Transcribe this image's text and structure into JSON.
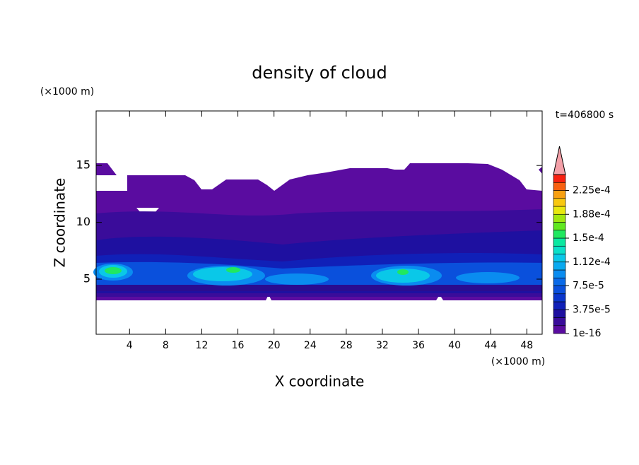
{
  "chart_data": {
    "type": "contour",
    "title": "density of cloud",
    "x_label": "X coordinate",
    "y_label": "Z coordinate",
    "x_unit": "(×1000 m)",
    "y_unit": "(×1000 m)",
    "time_label": "t=406800 s",
    "xlim": [
      0.3,
      49.7
    ],
    "ylim": [
      0.15,
      19.8
    ],
    "xticks": [
      4,
      8,
      12,
      16,
      20,
      24,
      28,
      32,
      36,
      40,
      44,
      48
    ],
    "yticks": [
      5,
      10,
      15
    ],
    "colorbar": {
      "lim": [
        0,
        0.00025
      ],
      "colors": [
        "#5a0ca0",
        "#3a0c9a",
        "#1e10a0",
        "#1020b8",
        "#0a36cc",
        "#0a50dc",
        "#0a6ae8",
        "#0a8cf0",
        "#0aaaf0",
        "#0ac8e8",
        "#0ae0c8",
        "#0ae8a0",
        "#20e860",
        "#60e820",
        "#a0e810",
        "#e8e810",
        "#f8c810",
        "#f8a010",
        "#f86010",
        "#f82010"
      ],
      "extend_color": "#f4a0a8",
      "ticks": [
        {
          "value": 1e-16,
          "label": "1e-16"
        },
        {
          "value": 3.75e-05,
          "label": "3.75e-5"
        },
        {
          "value": 7.5e-05,
          "label": "7.5e-5"
        },
        {
          "value": 0.0001125,
          "label": "1.12e-4"
        },
        {
          "value": 0.00015,
          "label": "1.5e-4"
        },
        {
          "value": 0.0001875,
          "label": "1.88e-4"
        },
        {
          "value": 0.000225,
          "label": "2.25e-4"
        }
      ]
    }
  }
}
